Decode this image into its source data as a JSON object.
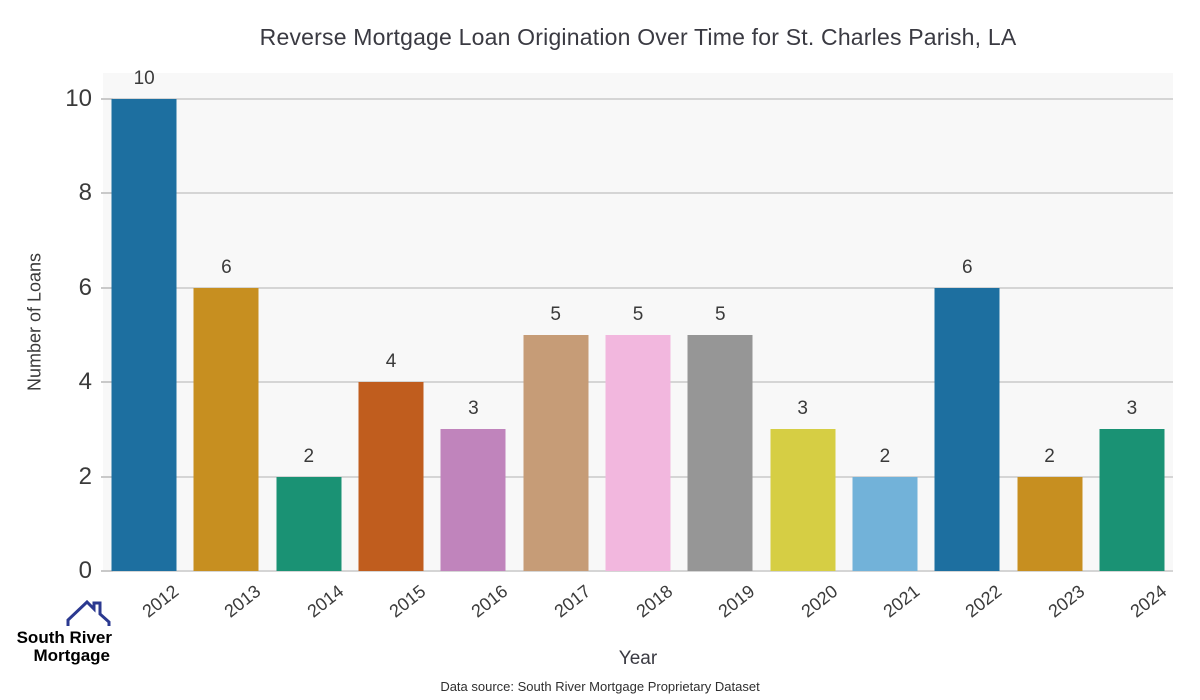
{
  "title": "Reverse Mortgage Loan Origination Over Time for St. Charles Parish, LA",
  "chart_data": {
    "type": "bar",
    "categories": [
      "2012",
      "2013",
      "2014",
      "2015",
      "2016",
      "2017",
      "2018",
      "2019",
      "2020",
      "2021",
      "2022",
      "2023",
      "2024"
    ],
    "values": [
      10,
      6,
      2,
      4,
      3,
      5,
      5,
      5,
      3,
      2,
      6,
      2,
      3
    ],
    "bar_colors": [
      "#1d6fa0",
      "#c78f20",
      "#1a9274",
      "#c05d1e",
      "#c084bc",
      "#c69c77",
      "#f2b7de",
      "#969696",
      "#d6ce44",
      "#72b2d9",
      "#1d6fa0",
      "#c78f20",
      "#1a9274"
    ],
    "title": "Reverse Mortgage Loan Origination Over Time for St. Charles Parish, LA",
    "xlabel": "Year",
    "ylabel": "Number of Loans",
    "ylim": [
      0,
      10.55
    ],
    "yticks": [
      0,
      2,
      4,
      6,
      8,
      10
    ],
    "grid": "horizontal",
    "legend": "none",
    "plot_background": "#f8f8f8",
    "gridline_color": "#d5d5d5",
    "value_labels_shown": true
  },
  "footer": {
    "source": "Data source: South River Mortgage Proprietary Dataset"
  },
  "logo": {
    "line1": "South River",
    "line2": "Mortgage",
    "color1": "#4a5ba8",
    "color2": "#2b3990",
    "icon": "house-roof-icon"
  }
}
